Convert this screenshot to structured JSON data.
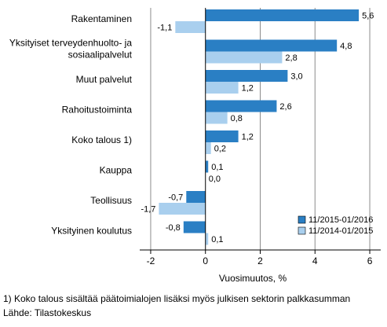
{
  "chart_data": {
    "type": "bar",
    "orientation": "horizontal",
    "categories": [
      [
        "Rakentaminen"
      ],
      [
        "Yksityiset terveydenhuolto- ja",
        "sosiaalipalvelut"
      ],
      [
        "Muut palvelut"
      ],
      [
        "Rahoitustoiminta"
      ],
      [
        "Koko talous 1)"
      ],
      [
        "Kauppa"
      ],
      [
        "Teollisuus"
      ],
      [
        "Yksityinen koulutus"
      ]
    ],
    "series": [
      {
        "name": "11/2015-01/2016",
        "values": [
          5.6,
          4.8,
          3.0,
          2.6,
          1.2,
          0.1,
          -0.7,
          -0.8
        ],
        "labels": [
          "5,6",
          "4,8",
          "3,0",
          "2,6",
          "1,2",
          "0,1",
          "-0,7",
          "-0,8"
        ],
        "color": "#2a7fc4"
      },
      {
        "name": "11/2014-01/2015",
        "values": [
          -1.1,
          2.8,
          1.2,
          0.8,
          0.2,
          0.0,
          -1.7,
          0.1
        ],
        "labels": [
          "-1,1",
          "2,8",
          "1,2",
          "0,8",
          "0,2",
          "0,0",
          "-1,7",
          "0,1"
        ],
        "color": "#a9cfee"
      }
    ],
    "xlim": [
      -2.4,
      6.4
    ],
    "xticks": [
      -2,
      0,
      2,
      4,
      6
    ],
    "xtick_labels": [
      "-2",
      "0",
      "2",
      "4",
      "6"
    ],
    "xlabel": "Vuosimuutos, %",
    "grid": "vertical",
    "legend_position": "bottom-right"
  },
  "notes": {
    "footnote": "1) Koko talous sisältää päätoimialojen lisäksi myös julkisen sektorin palkkasumman",
    "source": "Lähde: Tilastokeskus"
  }
}
